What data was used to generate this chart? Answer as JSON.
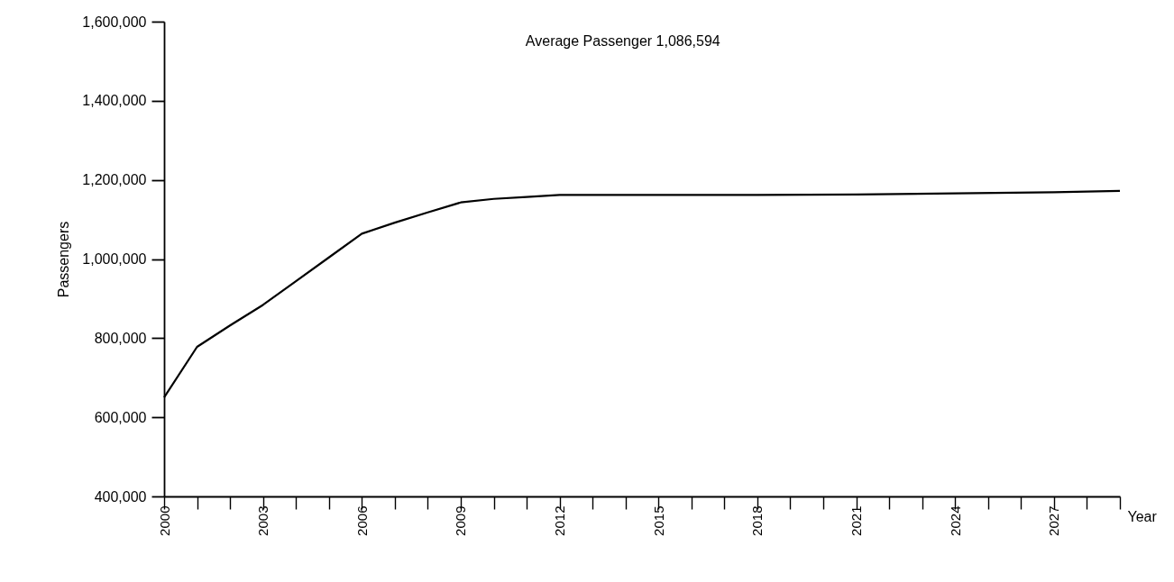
{
  "chart_data": {
    "type": "line",
    "xlabel": "Year",
    "ylabel": "Passengers",
    "annotations": [
      "Average Passenger 1,086,594"
    ],
    "x": [
      2000,
      2001,
      2002,
      2003,
      2004,
      2005,
      2006,
      2007,
      2008,
      2009,
      2010,
      2011,
      2012,
      2015,
      2018,
      2021,
      2024,
      2027,
      2029
    ],
    "series": [
      {
        "color": "#000000",
        "values": [
          650000,
          778000,
          832000,
          884000,
          944000,
          1004000,
          1064000,
          1092000,
          1118000,
          1143000,
          1152000,
          1157000,
          1162000,
          1162000,
          1162000,
          1163000,
          1166000,
          1169000,
          1172000
        ]
      }
    ],
    "xlim": [
      2000,
      2029
    ],
    "xticks": [
      2000,
      {
        "value": 2001,
        "label": null
      },
      {
        "value": 2002,
        "label": null
      },
      2003,
      {
        "value": 2004,
        "label": null
      },
      {
        "value": 2005,
        "label": null
      },
      2006,
      {
        "value": 2007,
        "label": null
      },
      {
        "value": 2008,
        "label": null
      },
      2009,
      {
        "value": 2010,
        "label": null
      },
      {
        "value": 2011,
        "label": null
      },
      2012,
      {
        "value": 2013,
        "label": null
      },
      {
        "value": 2014,
        "label": null
      },
      2015,
      {
        "value": 2016,
        "label": null
      },
      {
        "value": 2017,
        "label": null
      },
      2018,
      {
        "value": 2019,
        "label": null
      },
      {
        "value": 2020,
        "label": null
      },
      2021,
      {
        "value": 2022,
        "label": null
      },
      {
        "value": 2023,
        "label": null
      },
      2024,
      {
        "value": 2025,
        "label": null
      },
      {
        "value": 2026,
        "label": null
      },
      2027,
      {
        "value": 2028,
        "label": null
      },
      {
        "value": 2029,
        "label": null
      }
    ],
    "ylim": [
      400000,
      1600000
    ],
    "yticks": [
      {
        "value": 400000,
        "label": "400,000"
      },
      {
        "value": 600000,
        "label": "600,000"
      },
      {
        "value": 800000,
        "label": "800,000"
      },
      {
        "value": 1000000,
        "label": "1,000,000"
      },
      {
        "value": 1200000,
        "label": "1,200,000"
      },
      {
        "value": 1400000,
        "label": "1,400,000"
      },
      {
        "value": 1600000,
        "label": "1,600,000"
      }
    ],
    "grid": false,
    "marker": "none",
    "line_style": "solid"
  }
}
